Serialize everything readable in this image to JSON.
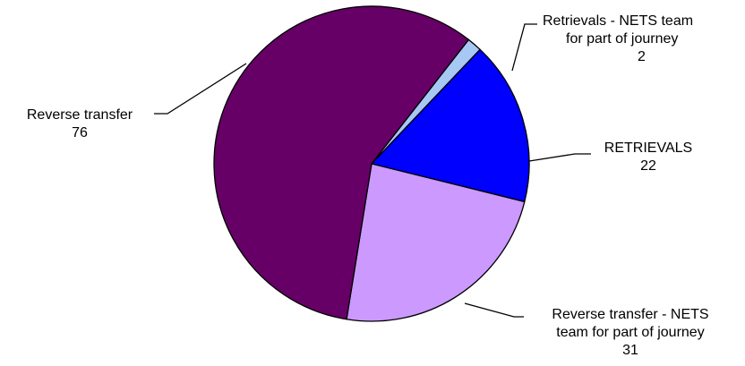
{
  "chart_data": {
    "type": "pie",
    "slices": [
      {
        "label_lines": [
          "Retrievals - NETS team",
          "for part of journey"
        ],
        "value": 2,
        "value_label": "2",
        "color": "#a7c7f5"
      },
      {
        "label_lines": [
          "RETRIEVALS"
        ],
        "value": 22,
        "value_label": "22",
        "color": "#0000ff"
      },
      {
        "label_lines": [
          "Reverse transfer - NETS",
          "team for part of journey"
        ],
        "value": 31,
        "value_label": "31",
        "color": "#cc99ff"
      },
      {
        "label_lines": [
          "Reverse transfer"
        ],
        "value": 76,
        "value_label": "76",
        "color": "#660066"
      }
    ]
  }
}
